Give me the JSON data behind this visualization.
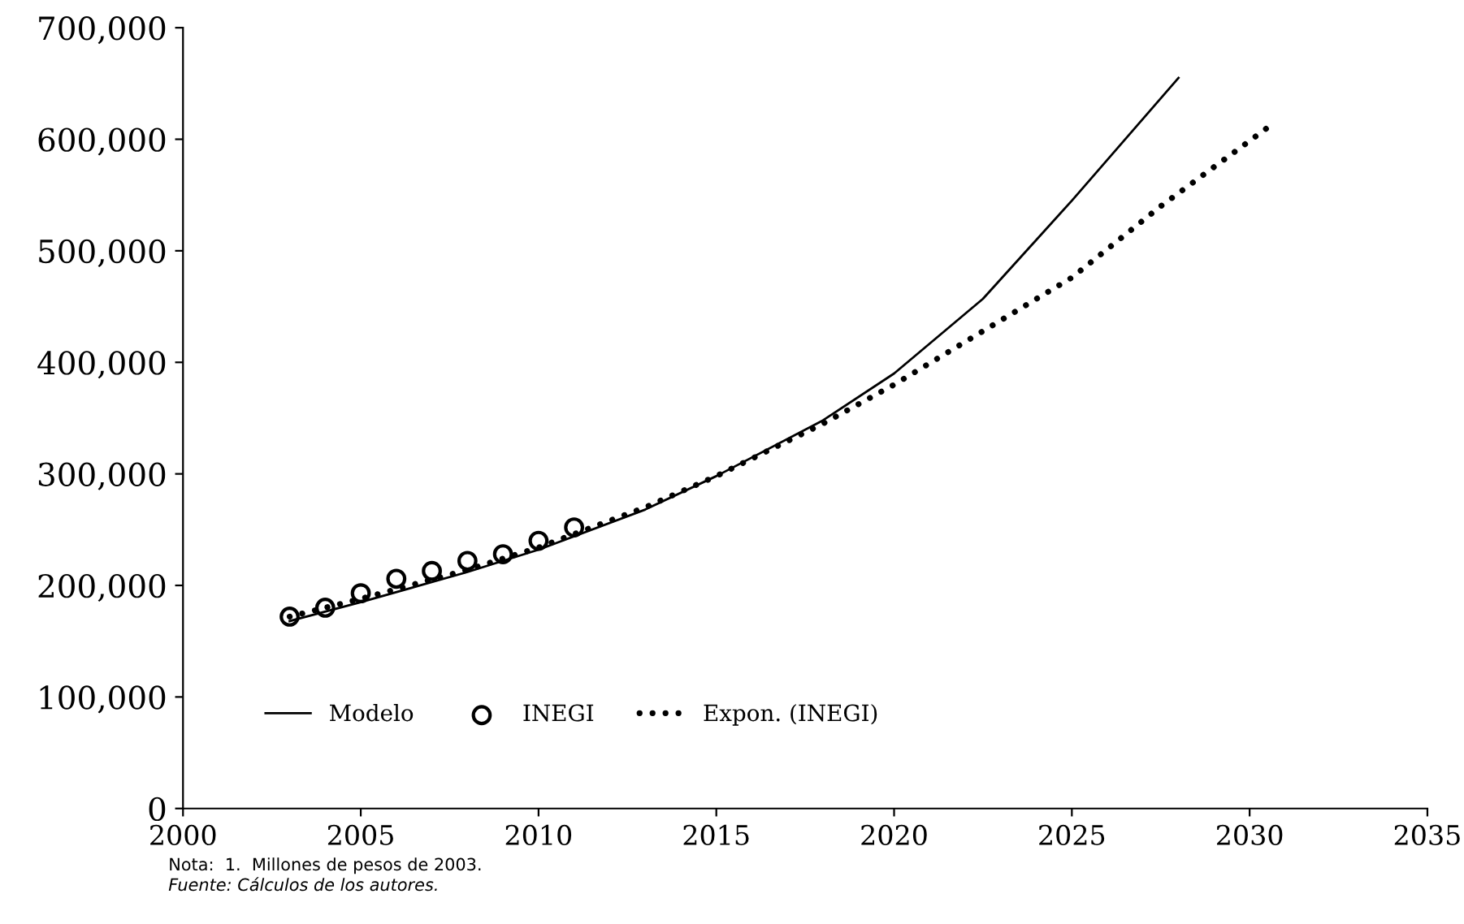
{
  "chart_data": {
    "type": "line",
    "xlim": [
      2000,
      2035
    ],
    "xticks": [
      2000,
      2005,
      2010,
      2015,
      2020,
      2025,
      2030,
      2035
    ],
    "ylim": [
      0,
      700000
    ],
    "yticks": [
      {
        "value": 0,
        "label": "0"
      },
      {
        "value": 100000,
        "label": "100,000"
      },
      {
        "value": 200000,
        "label": "200,000"
      },
      {
        "value": 300000,
        "label": "300,000"
      },
      {
        "value": 400000,
        "label": "400,000"
      },
      {
        "value": 500000,
        "label": "500,000"
      },
      {
        "value": 600000,
        "label": "600,000"
      },
      {
        "value": 700000,
        "label": "700,000"
      }
    ],
    "grid": false,
    "legend": "bottom left",
    "series": [
      {
        "name": "Modelo",
        "line_style": "solid",
        "marker": "none",
        "color": "#000000",
        "x": [
          2003,
          2005,
          2008,
          2010,
          2013,
          2015,
          2018,
          2020,
          2022.5,
          2025,
          2028
        ],
        "values": [
          168000,
          185000,
          212000,
          232000,
          268000,
          298000,
          348000,
          390000,
          457000,
          545000,
          655000
        ]
      },
      {
        "name": "INEGI",
        "type": "scatter",
        "marker": "circle",
        "color": "#000000",
        "x": [
          2003,
          2004,
          2005,
          2006,
          2007,
          2008,
          2009,
          2010,
          2011
        ],
        "values": [
          172000,
          180000,
          193000,
          206000,
          213000,
          222000,
          228000,
          240000,
          252000
        ]
      },
      {
        "name": "Expon. (INEGI)",
        "type": "line",
        "line_style": "dotted",
        "marker": "none",
        "color": "#000000",
        "x": [
          2003,
          2005,
          2008,
          2010,
          2013,
          2015,
          2018,
          2020,
          2022.5,
          2025,
          2027.5,
          2030.7
        ],
        "values": [
          172000,
          188000,
          214000,
          234000,
          270000,
          298000,
          345000,
          380000,
          428000,
          476000,
          540000,
          615000
        ]
      }
    ],
    "annotations": [
      "Nota:  1.  Millones de pesos de 2003.",
      "Fuente: Cálculos de los autores."
    ]
  }
}
